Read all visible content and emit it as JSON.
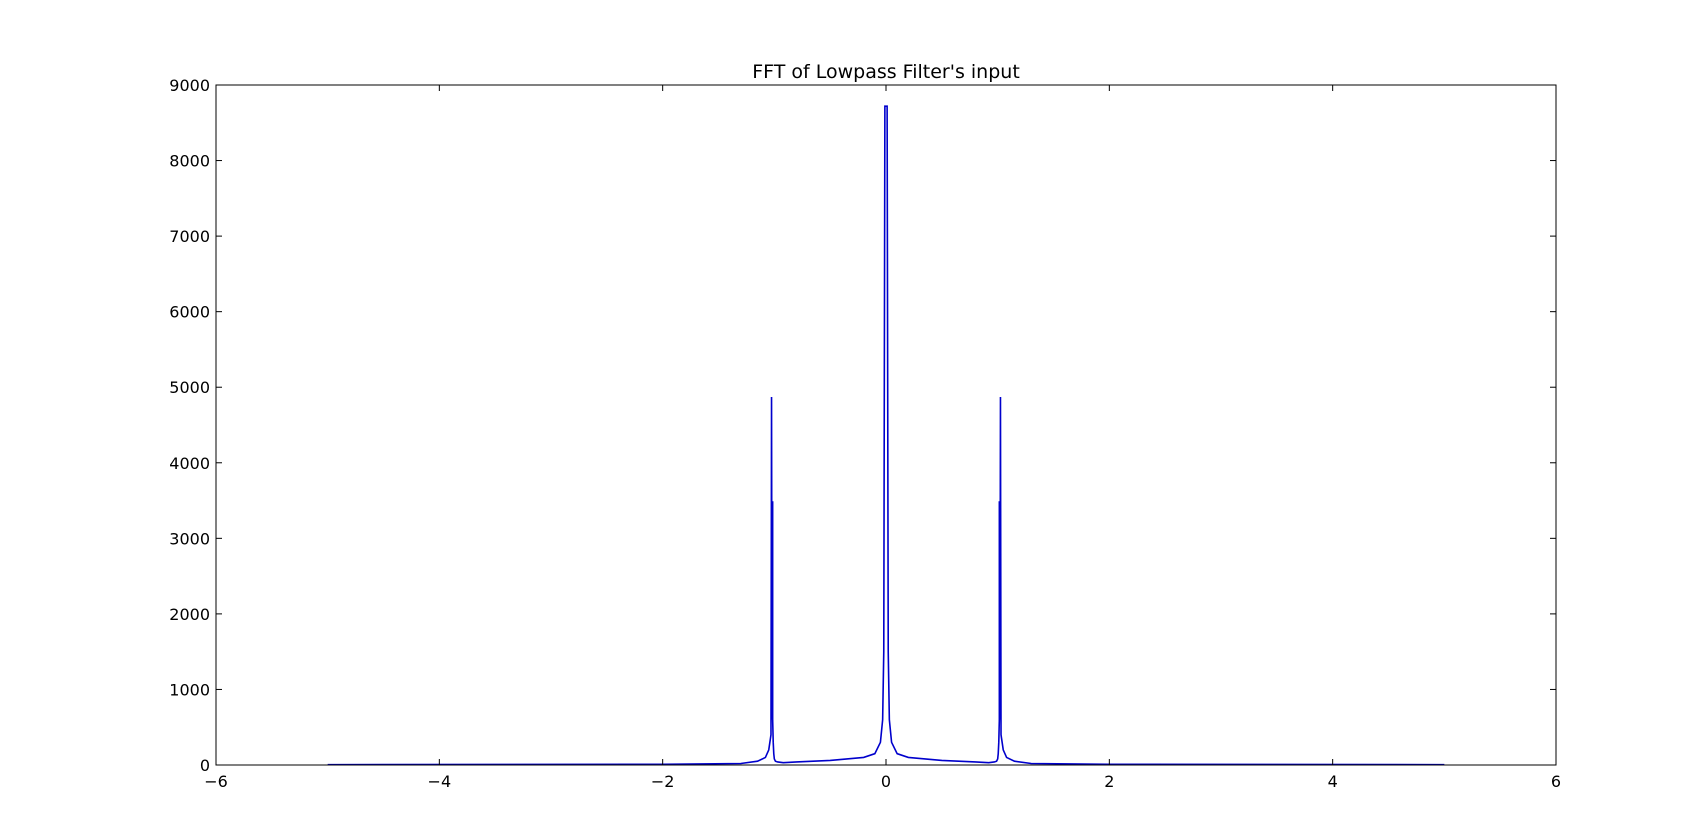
{
  "chart_data": {
    "type": "line",
    "title": "FFT of Lowpass Filter's input",
    "xlabel": "",
    "ylabel": "",
    "xlim": [
      -6,
      6
    ],
    "ylim": [
      0,
      9000
    ],
    "xticks": [
      -6,
      -4,
      -2,
      0,
      2,
      4,
      6
    ],
    "xtick_labels": [
      "−6",
      "−4",
      "−2",
      "0",
      "2",
      "4",
      "6"
    ],
    "yticks": [
      0,
      1000,
      2000,
      3000,
      4000,
      5000,
      6000,
      7000,
      8000,
      9000
    ],
    "ytick_labels": [
      "0",
      "1000",
      "2000",
      "3000",
      "4000",
      "5000",
      "6000",
      "7000",
      "8000",
      "9000"
    ],
    "grid": false,
    "line_color": "#0000cc",
    "series": [
      {
        "x": [
          -5.0,
          -2.0,
          -1.3,
          -1.15,
          -1.08,
          -1.05,
          -1.03,
          -1.025,
          -1.02,
          -1.02,
          -1.015,
          -1.015,
          -1.01,
          -1.005,
          -1.0,
          -0.99,
          -0.97,
          -0.92,
          -0.8,
          -0.5,
          -0.2,
          -0.1,
          -0.05,
          -0.03,
          -0.02,
          -0.01,
          -0.005,
          0.0,
          0.005,
          0.01,
          0.02,
          0.03,
          0.05,
          0.1,
          0.2,
          0.5,
          0.8,
          0.92,
          0.97,
          0.99,
          1.0,
          1.005,
          1.01,
          1.015,
          1.015,
          1.02,
          1.02,
          1.025,
          1.03,
          1.05,
          1.08,
          1.15,
          1.3,
          2.0,
          5.0
        ],
        "y": [
          5,
          10,
          20,
          50,
          100,
          200,
          400,
          4870,
          600,
          3480,
          3480,
          600,
          300,
          150,
          80,
          50,
          40,
          30,
          40,
          60,
          100,
          150,
          300,
          600,
          1500,
          8720,
          8720,
          8720,
          8720,
          8720,
          1500,
          600,
          300,
          150,
          100,
          60,
          40,
          30,
          40,
          50,
          80,
          150,
          300,
          600,
          3480,
          3480,
          600,
          4870,
          400,
          200,
          100,
          50,
          20,
          10,
          5
        ]
      }
    ]
  }
}
